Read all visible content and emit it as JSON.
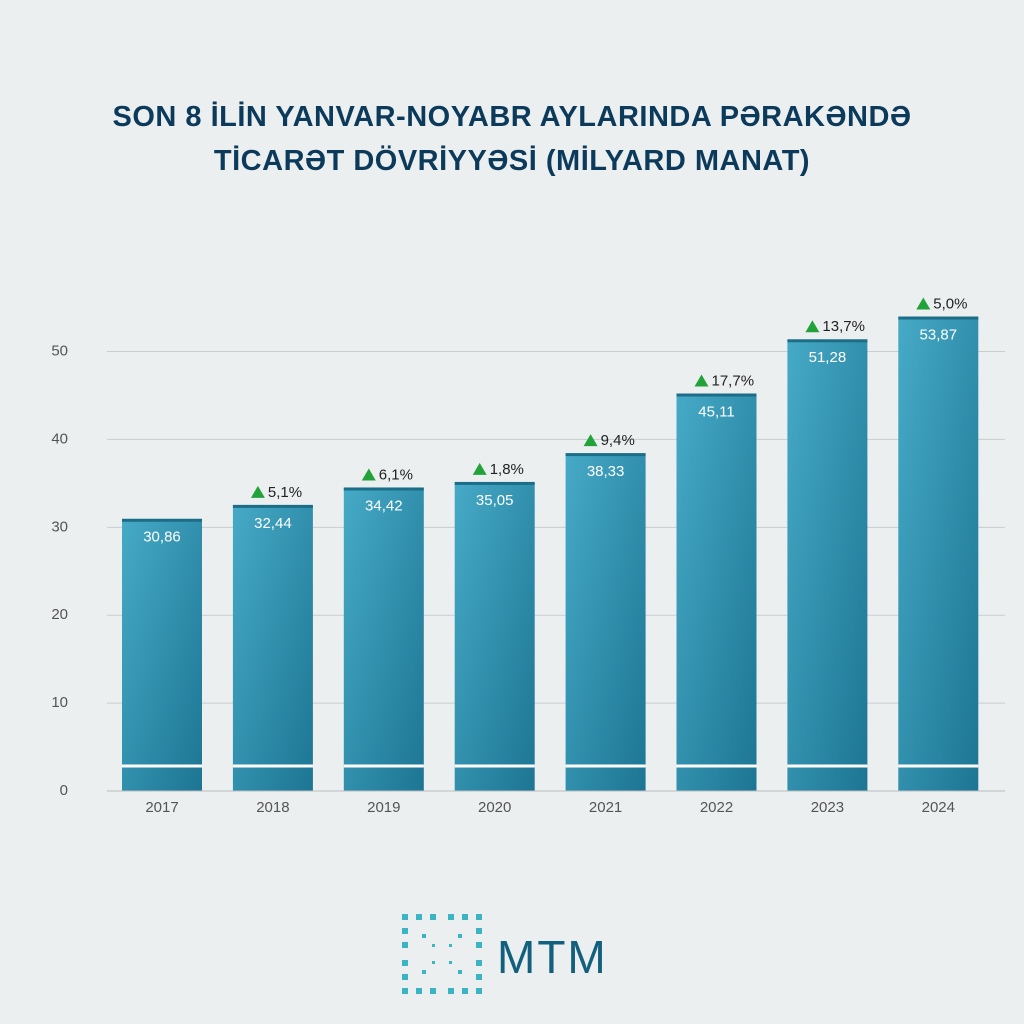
{
  "chart_data": {
    "type": "bar",
    "title": "SON 8 İLİN YANVAR-NOYABR AYLARINDA PƏRAKƏNDƏ TİCARƏT DÖVRİYYƏSİ (MİLYARD MANAT)",
    "categories": [
      "2017",
      "2018",
      "2019",
      "2020",
      "2021",
      "2022",
      "2023",
      "2024"
    ],
    "values": [
      30.86,
      32.44,
      34.42,
      35.05,
      38.33,
      45.11,
      51.28,
      53.87
    ],
    "value_labels": [
      "30,86",
      "32,44",
      "34,42",
      "35,05",
      "38,33",
      "45,11",
      "51,28",
      "53,87"
    ],
    "growth_labels": [
      null,
      "5,1%",
      "6,1%",
      "1,8%",
      "9,4%",
      "17,7%",
      "13,7%",
      "5,0%"
    ],
    "color": "#2a8fae",
    "ylim": [
      0,
      57
    ],
    "yticks": [
      0,
      10,
      20,
      30,
      40,
      50
    ],
    "grid": true
  },
  "footer": {
    "logo": "MTM"
  }
}
